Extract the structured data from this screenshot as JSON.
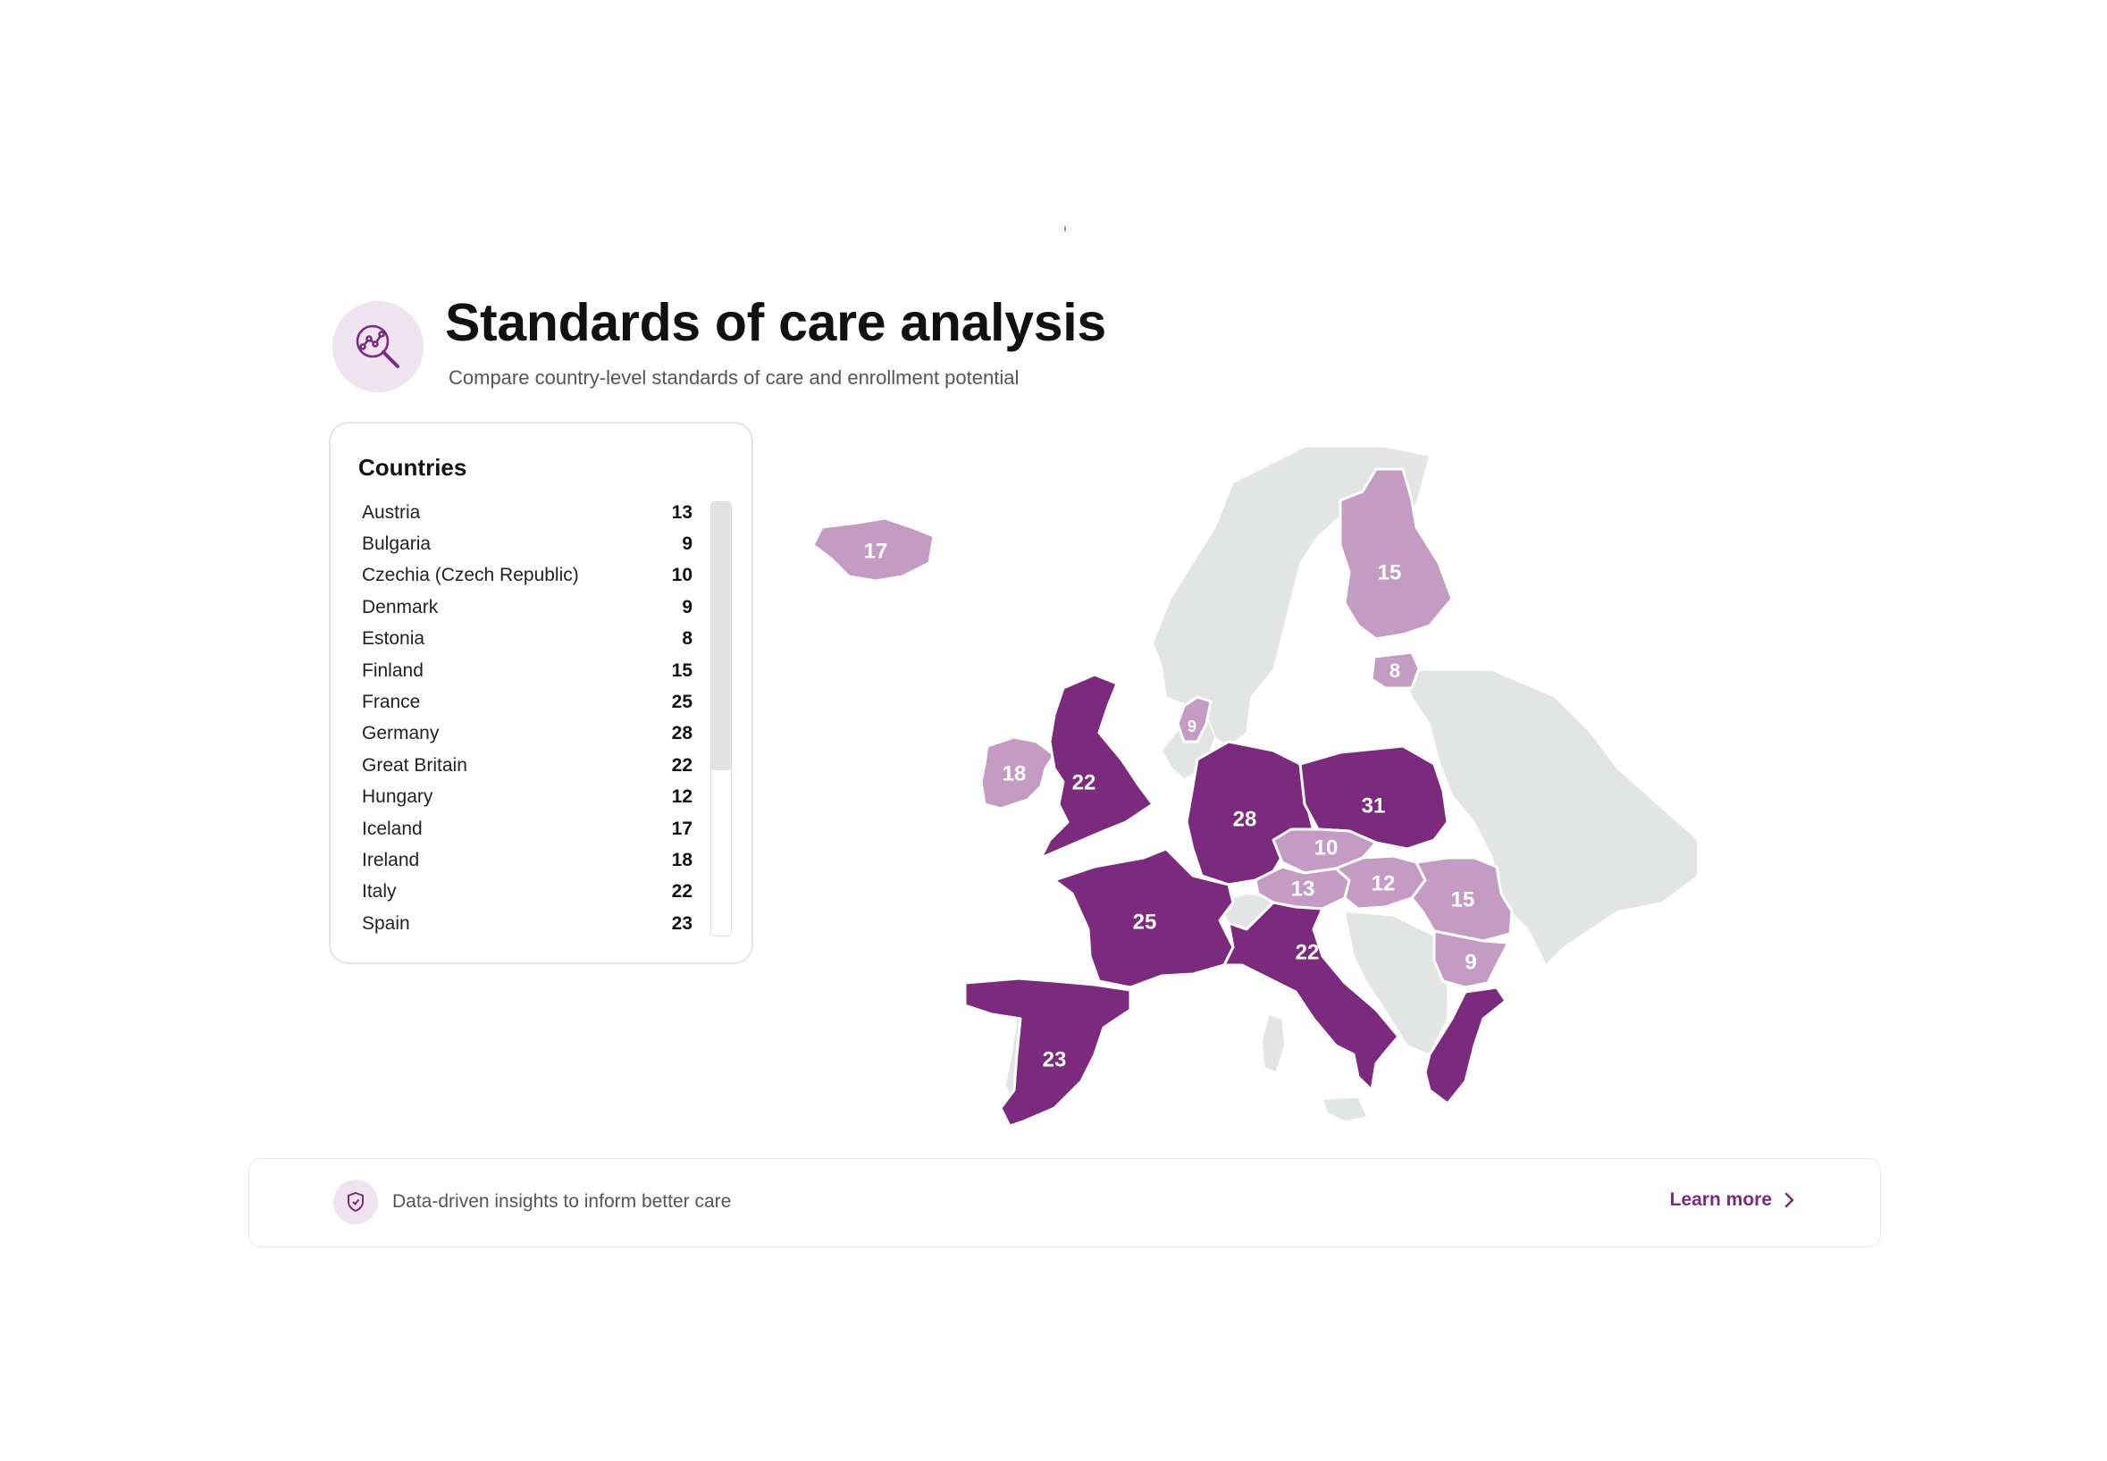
{
  "header": {
    "icon": "analytics-search-icon",
    "title": "Standards of care analysis",
    "subtitle": "Compare country-level standards of care and enrollment potential"
  },
  "panel": {
    "title": "Countries",
    "rows": [
      {
        "name": "Austria",
        "value": "13"
      },
      {
        "name": "Bulgaria",
        "value": "9"
      },
      {
        "name": "Czechia (Czech Republic)",
        "value": "10"
      },
      {
        "name": "Denmark",
        "value": "9"
      },
      {
        "name": "Estonia",
        "value": "8"
      },
      {
        "name": "Finland",
        "value": "15"
      },
      {
        "name": "France",
        "value": "25"
      },
      {
        "name": "Germany",
        "value": "28"
      },
      {
        "name": "Great Britain",
        "value": "22"
      },
      {
        "name": "Hungary",
        "value": "12"
      },
      {
        "name": "Iceland",
        "value": "17"
      },
      {
        "name": "Ireland",
        "value": "18"
      },
      {
        "name": "Italy",
        "value": "22"
      },
      {
        "name": "Spain",
        "value": "23"
      }
    ]
  },
  "map": {
    "colors": {
      "high": "#7b2a7e",
      "medium": "#c39bc3",
      "none": "#e3e4e4",
      "border": "#ffffff"
    },
    "regions": [
      {
        "name": "Iceland",
        "value": "17",
        "level": "medium"
      },
      {
        "name": "Finland",
        "value": "15",
        "level": "medium"
      },
      {
        "name": "Estonia",
        "value": "8",
        "level": "medium"
      },
      {
        "name": "Denmark",
        "value": "9",
        "level": "medium"
      },
      {
        "name": "Ireland",
        "value": "18",
        "level": "medium"
      },
      {
        "name": "Great Britain",
        "value": "22",
        "level": "high"
      },
      {
        "name": "Germany",
        "value": "28",
        "level": "high"
      },
      {
        "name": "Poland",
        "value": "31",
        "level": "high"
      },
      {
        "name": "Czechia",
        "value": "10",
        "level": "medium"
      },
      {
        "name": "Austria",
        "value": "13",
        "level": "medium"
      },
      {
        "name": "Hungary",
        "value": "12",
        "level": "medium"
      },
      {
        "name": "Romania",
        "value": "15",
        "level": "medium"
      },
      {
        "name": "France",
        "value": "25",
        "level": "high"
      },
      {
        "name": "Italy",
        "value": "22",
        "level": "high"
      },
      {
        "name": "Bulgaria",
        "value": "9",
        "level": "medium"
      },
      {
        "name": "Spain",
        "value": "23",
        "level": "high"
      },
      {
        "name": "Greece",
        "value": "",
        "level": "high"
      }
    ]
  },
  "footer": {
    "icon": "shield-icon",
    "text": "Data-driven insights to inform better care",
    "link_label": "Learn more",
    "link_icon": "chevron-right-icon"
  }
}
